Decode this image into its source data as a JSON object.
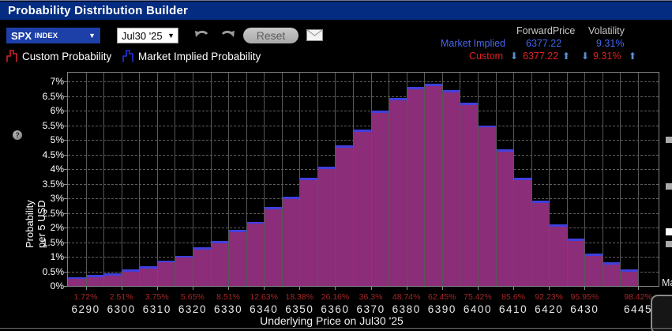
{
  "window": {
    "title": "Probability Distribution Builder"
  },
  "toolbar": {
    "security_select": {
      "symbol": "SPX",
      "type_suffix": "INDEX",
      "arrow": "▼"
    },
    "expiry_select": {
      "value": "Jul30 '25",
      "arrow": "▼"
    },
    "reset_label": "Reset"
  },
  "stats": {
    "col_headers": {
      "forward_price": "ForwardPrice",
      "volatility": "Volatility"
    },
    "market_implied": {
      "label": "Market Implied",
      "forward_price": "6377.22",
      "volatility": "9.31%"
    },
    "custom": {
      "label": "Custom",
      "forward_price": "6377.22",
      "volatility": "9.31%"
    },
    "icons": {
      "down_arrow": "⬇",
      "up_arrow": "⬆"
    }
  },
  "legend": {
    "custom": {
      "label": "Custom Probability",
      "color": "#cc2222"
    },
    "market": {
      "label": "Market Implied Probability",
      "color": "#2233dd"
    }
  },
  "right_edge": {
    "partial_label": "Ma"
  },
  "chart_data": {
    "type": "bar",
    "title": "",
    "xlabel": "Underlying Price on Jul30 '25",
    "ylabel_line1": "Probability",
    "ylabel_line2": "per 5 USD",
    "ylim": [
      0,
      7
    ],
    "y_tick_labels": [
      "7%",
      "6.5%",
      "6%",
      "5.5%",
      "5%",
      "4.5%",
      "4%",
      "3.5%",
      "3%",
      "2.5%",
      "2%",
      "1.5%",
      "1%",
      "0.5%",
      "0%"
    ],
    "x_tick_labels": [
      "6290",
      "6300",
      "6310",
      "6320",
      "6330",
      "6340",
      "6350",
      "6360",
      "6370",
      "6380",
      "6390",
      "6400",
      "6410",
      "6420",
      "6430",
      "6445"
    ],
    "cumulative_labels": [
      "1.72%",
      "2.51%",
      "3.75%",
      "5.65%",
      "8.51%",
      "12.63%",
      "18.38%",
      "26.16%",
      "36.3%",
      "48.74%",
      "62.45%",
      "75.42%",
      "85.6%",
      "92.23%",
      "95.95%",
      "98.42%"
    ],
    "bar_width_usd": 5,
    "series": [
      {
        "name": "Market Implied Probability",
        "color": "#4040dd",
        "values": [
          0.3,
          0.37,
          0.42,
          0.57,
          0.67,
          0.87,
          1.03,
          1.32,
          1.54,
          1.92,
          2.2,
          2.7,
          3.05,
          3.7,
          4.08,
          4.8,
          5.34,
          6.0,
          6.44,
          6.82,
          6.92,
          6.7,
          6.27,
          5.5,
          4.68,
          3.7,
          2.93,
          2.1,
          1.62,
          1.1,
          0.8,
          0.57
        ]
      },
      {
        "name": "Custom Probability",
        "color": "#8b2d78",
        "values": [
          0.24,
          0.3,
          0.35,
          0.5,
          0.6,
          0.8,
          0.96,
          1.25,
          1.47,
          1.85,
          2.13,
          2.62,
          2.97,
          3.62,
          4.0,
          4.72,
          5.26,
          5.92,
          6.36,
          6.74,
          6.84,
          6.62,
          6.19,
          5.42,
          4.6,
          3.62,
          2.85,
          2.02,
          1.54,
          1.03,
          0.73,
          0.5
        ]
      }
    ],
    "grid": {
      "horizontal": "dashed",
      "vertical": "solid"
    }
  }
}
